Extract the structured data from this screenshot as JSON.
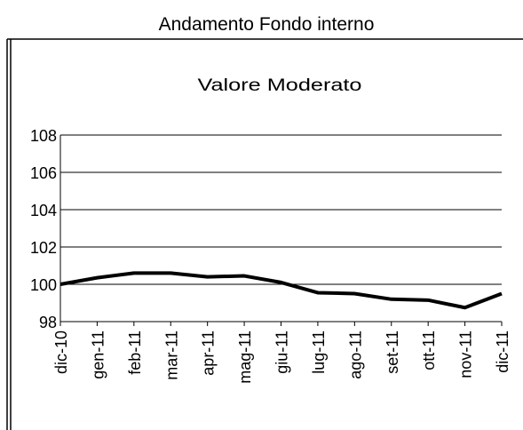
{
  "chart_data": {
    "type": "line",
    "title": "Andamento Fondo interno",
    "subtitle": "Valore Moderato",
    "categories": [
      "dic-10",
      "gen-11",
      "feb-11",
      "mar-11",
      "apr-11",
      "mag-11",
      "giu-11",
      "lug-11",
      "ago-11",
      "set-11",
      "ott-11",
      "nov-11",
      "dic-11"
    ],
    "series": [
      {
        "name": "Valore Moderato",
        "color": "#000000",
        "values": [
          100.0,
          100.35,
          100.6,
          100.6,
          100.4,
          100.45,
          100.1,
          99.55,
          99.5,
          99.2,
          99.15,
          98.75,
          99.5
        ]
      }
    ],
    "ylim": [
      98,
      108
    ],
    "yticks": [
      98,
      100,
      102,
      104,
      106,
      108
    ],
    "grid": true
  }
}
